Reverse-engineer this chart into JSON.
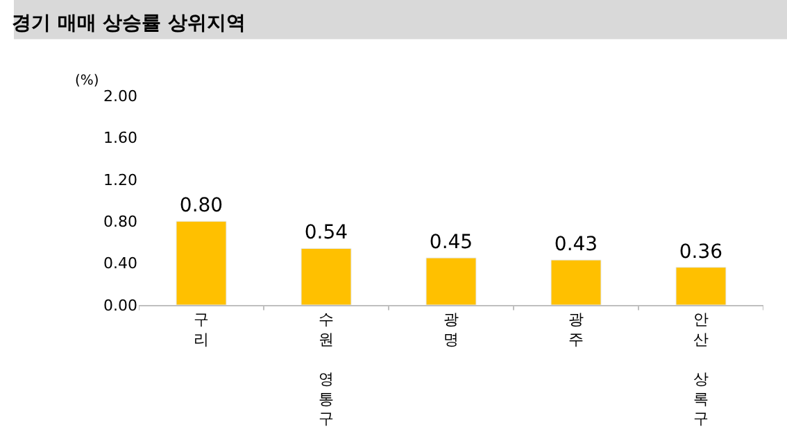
{
  "chart_data": {
    "type": "bar",
    "title": "경기 매매 상승률 상위지역",
    "ylabel": "(%)",
    "categories": [
      "구리",
      "수원 영통구",
      "광명",
      "광주",
      "안산 상록구"
    ],
    "values": [
      0.8,
      0.54,
      0.45,
      0.43,
      0.36
    ],
    "color": "#ffc000",
    "ylim": [
      0,
      2
    ],
    "yticks": [
      {
        "value": 0,
        "label": "0.00"
      },
      {
        "value": 0.4,
        "label": "0.40"
      },
      {
        "value": 0.8,
        "label": "0.80"
      },
      {
        "value": 1.2,
        "label": "1.20"
      },
      {
        "value": 1.6,
        "label": "1.60"
      },
      {
        "value": 2,
        "label": "2.00"
      }
    ],
    "value_labels": [
      "0.80",
      "0.54",
      "0.45",
      "0.43",
      "0.36"
    ]
  }
}
